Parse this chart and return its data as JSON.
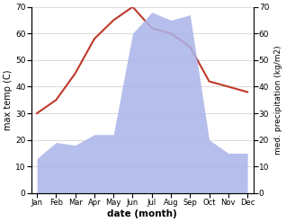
{
  "months": [
    "Jan",
    "Feb",
    "Mar",
    "Apr",
    "May",
    "Jun",
    "Jul",
    "Aug",
    "Sep",
    "Oct",
    "Nov",
    "Dec"
  ],
  "temperature": [
    30,
    35,
    45,
    58,
    65,
    70,
    62,
    60,
    55,
    42,
    40,
    38
  ],
  "precipitation": [
    13,
    19,
    18,
    22,
    22,
    60,
    68,
    65,
    67,
    20,
    15,
    15
  ],
  "temp_color": "#c0392b",
  "precip_color": "#aab4e8",
  "ylabel_left": "max temp (C)",
  "ylabel_right": "med. precipitation (kg/m2)",
  "xlabel": "date (month)",
  "ylim_left": [
    0,
    70
  ],
  "ylim_right": [
    0,
    70
  ],
  "yticks": [
    0,
    10,
    20,
    30,
    40,
    50,
    60,
    70
  ],
  "background_color": "#ffffff"
}
